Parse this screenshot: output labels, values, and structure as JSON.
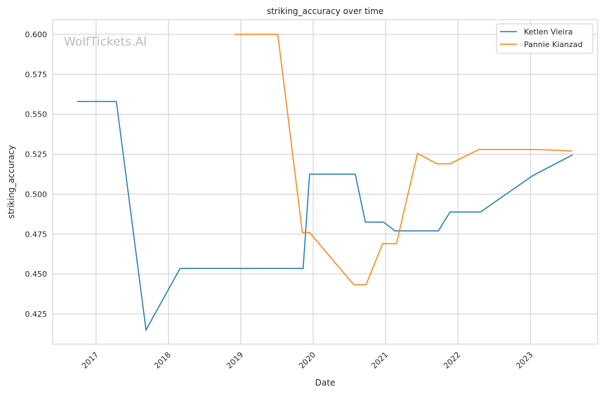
{
  "chart_data": {
    "type": "line",
    "title": "striking_accuracy over time",
    "xlabel": "Date",
    "ylabel": "striking_accuracy",
    "watermark": "WolfTickets.AI",
    "xlim": [
      2016.4,
      2023.93
    ],
    "ylim": [
      0.4061,
      0.6092
    ],
    "xticks": [
      2017,
      2018,
      2019,
      2020,
      2021,
      2022,
      2023
    ],
    "xtick_labels": [
      "2017",
      "2018",
      "2019",
      "2020",
      "2021",
      "2022",
      "2023"
    ],
    "yticks": [
      0.425,
      0.45,
      0.475,
      0.5,
      0.525,
      0.55,
      0.575,
      0.6
    ],
    "ytick_labels": [
      "0.425",
      "0.450",
      "0.475",
      "0.500",
      "0.525",
      "0.550",
      "0.575",
      "0.600"
    ],
    "grid": true,
    "legend_position": "top-right",
    "series": [
      {
        "name": "Ketlen Vieira",
        "color": "#1f77b4",
        "x": [
          2016.74,
          2017.28,
          2017.69,
          2018.16,
          2019.86,
          2019.95,
          2020.58,
          2020.72,
          2020.97,
          2021.13,
          2021.73,
          2021.89,
          2022.31,
          2023.03,
          2023.58
        ],
        "y": [
          0.558,
          0.558,
          0.415,
          0.4535,
          0.4535,
          0.5125,
          0.5125,
          0.4825,
          0.4825,
          0.477,
          0.477,
          0.4888,
          0.4888,
          0.5115,
          0.5245
        ]
      },
      {
        "name": "Pannie Kianzad",
        "color": "#ff7f0e",
        "x": [
          2018.91,
          2019.51,
          2019.85,
          2019.95,
          2020.56,
          2020.73,
          2020.96,
          2021.15,
          2021.44,
          2021.71,
          2021.89,
          2022.29,
          2023.04,
          2023.58
        ],
        "y": [
          0.6,
          0.6,
          0.476,
          0.476,
          0.4433,
          0.4433,
          0.469,
          0.469,
          0.5255,
          0.519,
          0.519,
          0.528,
          0.528,
          0.527
        ]
      }
    ]
  }
}
